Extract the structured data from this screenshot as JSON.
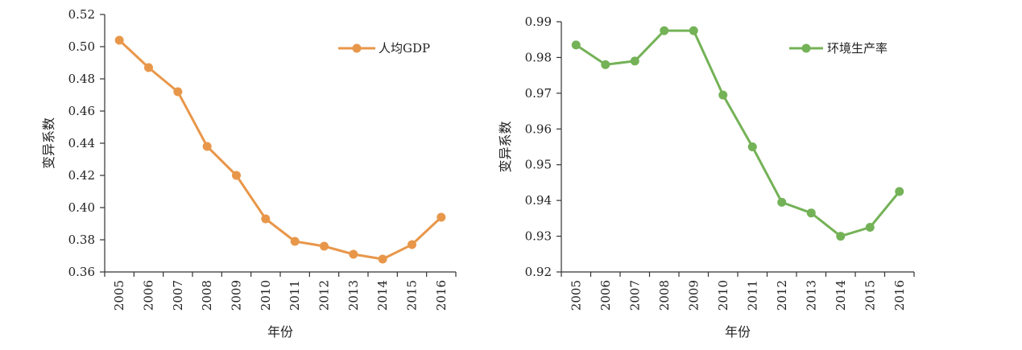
{
  "chart_data": [
    {
      "type": "line",
      "title": "",
      "xlabel": "年份",
      "ylabel": "变异系数",
      "categories": [
        "2005",
        "2006",
        "2007",
        "2008",
        "2009",
        "2010",
        "2011",
        "2012",
        "2013",
        "2014",
        "2015",
        "2016"
      ],
      "yticks": [
        "0.36",
        "0.38",
        "0.40",
        "0.42",
        "0.44",
        "0.46",
        "0.48",
        "0.50",
        "0.52"
      ],
      "ylim": [
        0.36,
        0.52
      ],
      "grid": false,
      "legend_position": "top-right",
      "series": [
        {
          "name": "人均GDP",
          "color": "#E8974A",
          "values": [
            0.504,
            0.487,
            0.472,
            0.438,
            0.42,
            0.393,
            0.379,
            0.376,
            0.371,
            0.368,
            0.377,
            0.394
          ]
        }
      ]
    },
    {
      "type": "line",
      "title": "",
      "xlabel": "年份",
      "ylabel": "变异系数",
      "categories": [
        "2005",
        "2006",
        "2007",
        "2008",
        "2009",
        "2010",
        "2011",
        "2012",
        "2013",
        "2014",
        "2015",
        "2016"
      ],
      "yticks": [
        "0.92",
        "0.93",
        "0.94",
        "0.95",
        "0.96",
        "0.97",
        "0.98",
        "0.99"
      ],
      "ylim": [
        0.92,
        0.99
      ],
      "grid": false,
      "legend_position": "top-right",
      "series": [
        {
          "name": "环境生产率",
          "color": "#74B257",
          "values": [
            0.9835,
            0.978,
            0.979,
            0.9875,
            0.9875,
            0.9695,
            0.955,
            0.9395,
            0.9365,
            0.93,
            0.9325,
            0.9425
          ]
        }
      ]
    }
  ]
}
